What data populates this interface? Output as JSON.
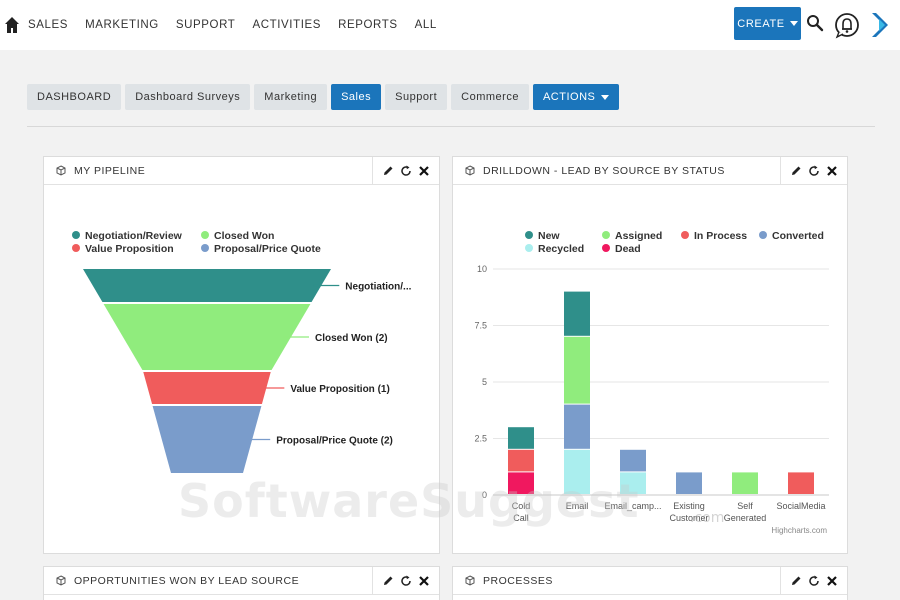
{
  "nav": {
    "items": [
      "SALES",
      "MARKETING",
      "SUPPORT",
      "ACTIVITIES",
      "REPORTS",
      "ALL"
    ],
    "create_label": "CREATE",
    "icons": {
      "home": "home-icon",
      "search": "search-icon",
      "notifications": "bell-icon",
      "logo": "app-logo"
    }
  },
  "tabs": [
    {
      "label": "DASHBOARD",
      "active": false
    },
    {
      "label": "Dashboard Surveys",
      "active": false
    },
    {
      "label": "Marketing",
      "active": false
    },
    {
      "label": "Sales",
      "active": true
    },
    {
      "label": "Support",
      "active": false
    },
    {
      "label": "Commerce",
      "active": false
    },
    {
      "label": "ACTIONS",
      "active": false
    }
  ],
  "dashlets": {
    "pipeline": {
      "title": "MY PIPELINE"
    },
    "drilldown": {
      "title": "DRILLDOWN - LEAD BY SOURCE BY STATUS"
    },
    "opportunities": {
      "title": "OPPORTUNITIES WON BY LEAD SOURCE"
    },
    "processes": {
      "title": "PROCESSES"
    }
  },
  "chart_data": [
    {
      "type": "funnel",
      "legend": [
        {
          "name": "Negotiation/Review",
          "color": "#2f8f8a"
        },
        {
          "name": "Closed Won",
          "color": "#90ec7d"
        },
        {
          "name": "Value Proposition",
          "color": "#f05c5c"
        },
        {
          "name": "Proposal/Price Quote",
          "color": "#7a9ccb"
        }
      ],
      "stages": [
        {
          "name": "Negotiation/Review",
          "value": 1,
          "label": "Negotiation/...",
          "color": "#2f8f8a"
        },
        {
          "name": "Closed Won",
          "value": 2,
          "label": "Closed Won (2)",
          "color": "#90ec7d"
        },
        {
          "name": "Value Proposition",
          "value": 1,
          "label": "Value Proposition (1)",
          "color": "#f05c5c"
        },
        {
          "name": "Proposal/Price Quote",
          "value": 2,
          "label": "Proposal/Price Quote (2)",
          "color": "#7a9ccb"
        }
      ]
    },
    {
      "type": "bar",
      "stacked": true,
      "categories": [
        "Cold Call",
        "Email",
        "Email_camp...",
        "Existing Customer",
        "Self Generated",
        "SocialMedia"
      ],
      "y_ticks": [
        "0",
        "2.5",
        "5",
        "7.5",
        "10"
      ],
      "ylim": [
        0,
        10
      ],
      "legend": [
        {
          "name": "New",
          "color": "#2f8f8a"
        },
        {
          "name": "Assigned",
          "color": "#90ec7d"
        },
        {
          "name": "In Process",
          "color": "#f05c5c"
        },
        {
          "name": "Converted",
          "color": "#7a9ccb"
        },
        {
          "name": "Recycled",
          "color": "#aaeeee"
        },
        {
          "name": "Dead",
          "color": "#f0185f"
        }
      ],
      "series": [
        {
          "name": "Dead",
          "color": "#f0185f",
          "values": [
            1,
            0,
            0,
            0,
            0,
            0
          ]
        },
        {
          "name": "In Process",
          "color": "#f05c5c",
          "values": [
            1,
            0,
            0,
            0,
            0,
            1
          ]
        },
        {
          "name": "Recycled",
          "color": "#aaeeee",
          "values": [
            0,
            2,
            1,
            0,
            0,
            0
          ]
        },
        {
          "name": "Converted",
          "color": "#7a9ccb",
          "values": [
            0,
            2,
            1,
            1,
            0,
            0
          ]
        },
        {
          "name": "Assigned",
          "color": "#90ec7d",
          "values": [
            0,
            3,
            0,
            0,
            1,
            0
          ]
        },
        {
          "name": "New",
          "color": "#2f8f8a",
          "values": [
            1,
            2,
            0,
            0,
            0,
            0
          ]
        }
      ],
      "credits": "Highcharts.com"
    }
  ],
  "watermark": {
    "text": "SoftwareSuggest",
    "suffix": ".com"
  }
}
